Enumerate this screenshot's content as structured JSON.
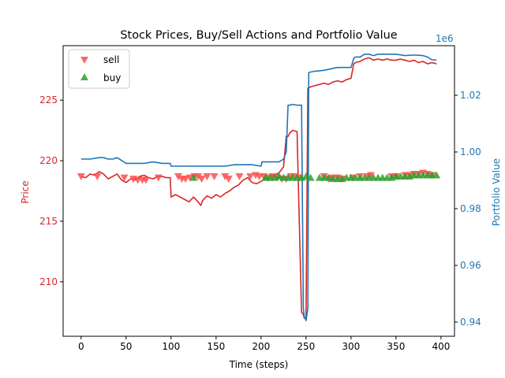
{
  "chart_data": {
    "type": "line",
    "title": "Stock Prices, Buy/Sell Actions and Portfolio Value",
    "xlabel": "Time (steps)",
    "ylabel": "Price",
    "y2label": "Portfolio Value",
    "y2_offset_text": "1e6",
    "xlim": [
      -20,
      415
    ],
    "ylim": [
      205.5,
      229.5
    ],
    "y2lim": [
      0.935,
      1.0375
    ],
    "x_ticks": [
      0,
      50,
      100,
      150,
      200,
      250,
      300,
      350,
      400
    ],
    "y_ticks": [
      210,
      215,
      220,
      225
    ],
    "y2_ticks": [
      0.94,
      0.96,
      0.98,
      1.0,
      1.02
    ],
    "y2_tick_labels": [
      "0.94",
      "0.96",
      "0.98",
      "1.00",
      "1.02"
    ],
    "legend_position": "top-left",
    "colors": {
      "price": "#d62728",
      "portfolio": "#1f77b4",
      "sell": "#ff4d4d",
      "buy": "#2ca02c"
    },
    "series": [
      {
        "name": "Price",
        "axis": "left",
        "x": [
          0,
          5,
          10,
          15,
          20,
          25,
          30,
          35,
          40,
          45,
          50,
          55,
          60,
          65,
          70,
          75,
          80,
          85,
          90,
          95,
          99,
          100,
          105,
          110,
          115,
          120,
          125,
          130,
          133,
          135,
          140,
          145,
          150,
          155,
          160,
          165,
          170,
          175,
          180,
          185,
          190,
          195,
          200,
          205,
          210,
          215,
          220,
          225,
          228,
          230,
          232,
          235,
          240,
          245,
          247,
          248,
          250,
          252,
          253,
          255,
          260,
          265,
          270,
          275,
          280,
          285,
          290,
          295,
          300,
          303,
          305,
          310,
          315,
          320,
          325,
          330,
          335,
          340,
          345,
          350,
          355,
          360,
          365,
          370,
          375,
          380,
          385,
          390,
          395
        ],
        "values": [
          218.7,
          218.6,
          218.9,
          218.8,
          219.1,
          218.9,
          218.5,
          218.7,
          218.9,
          218.4,
          218.2,
          218.5,
          218.4,
          218.7,
          218.8,
          218.6,
          218.5,
          218.7,
          218.7,
          218.6,
          218.6,
          217.0,
          217.2,
          217.0,
          216.8,
          216.6,
          217.0,
          216.6,
          216.3,
          216.7,
          217.1,
          216.9,
          217.2,
          217.0,
          217.3,
          217.5,
          217.8,
          218.0,
          218.4,
          218.6,
          218.2,
          218.1,
          218.3,
          218.5,
          218.7,
          218.8,
          219.0,
          219.5,
          222.0,
          222.0,
          222.3,
          222.5,
          222.4,
          207.5,
          207.3,
          207.0,
          207.0,
          226.0,
          226.0,
          226.1,
          226.2,
          226.3,
          226.4,
          226.3,
          226.5,
          226.6,
          226.5,
          226.7,
          226.8,
          228.0,
          228.1,
          228.2,
          228.4,
          228.5,
          228.3,
          228.4,
          228.3,
          228.4,
          228.3,
          228.3,
          228.4,
          228.3,
          228.2,
          228.3,
          228.1,
          228.2,
          228.0,
          228.1,
          228.0
        ]
      },
      {
        "name": "Portfolio Value",
        "axis": "right",
        "x": [
          0,
          10,
          20,
          25,
          30,
          35,
          40,
          45,
          50,
          60,
          70,
          80,
          90,
          99,
          100,
          110,
          120,
          130,
          140,
          150,
          160,
          170,
          180,
          190,
          200,
          201,
          210,
          220,
          225,
          228,
          230,
          232,
          235,
          240,
          245,
          247,
          248,
          250,
          252,
          253,
          255,
          260,
          270,
          280,
          285,
          290,
          300,
          303,
          305,
          310,
          315,
          320,
          325,
          330,
          340,
          350,
          360,
          370,
          380,
          385,
          390,
          395
        ],
        "values": [
          0.9975,
          0.9975,
          0.998,
          0.998,
          0.9975,
          0.9975,
          0.998,
          0.997,
          0.996,
          0.996,
          0.996,
          0.9965,
          0.996,
          0.996,
          0.995,
          0.995,
          0.995,
          0.995,
          0.995,
          0.995,
          0.995,
          0.9955,
          0.9955,
          0.9955,
          0.995,
          0.9965,
          0.9965,
          0.9965,
          0.9975,
          1.0,
          1.0165,
          1.0165,
          1.0168,
          1.0165,
          1.0165,
          0.945,
          0.942,
          0.9405,
          0.945,
          1.028,
          1.0282,
          1.0285,
          1.0288,
          1.0295,
          1.0298,
          1.0298,
          1.0298,
          1.033,
          1.0335,
          1.0335,
          1.0345,
          1.0345,
          1.034,
          1.0345,
          1.0345,
          1.0345,
          1.034,
          1.0342,
          1.034,
          1.0335,
          1.0325,
          1.0325
        ]
      }
    ],
    "markers": [
      {
        "name": "sell",
        "shape": "triangle-down",
        "x": [
          0,
          18,
          48,
          58,
          63,
          68,
          72,
          86,
          108,
          112,
          116,
          121,
          126,
          130,
          134,
          140,
          148,
          160,
          164,
          176,
          188,
          194,
          198,
          203,
          208,
          213,
          218,
          223,
          228,
          233,
          238,
          243,
          270,
          275,
          280,
          285,
          290,
          302,
          310,
          318,
          322,
          345,
          350,
          360,
          365,
          370,
          375,
          380,
          385,
          390
        ],
        "values": [
          218.7,
          218.7,
          218.6,
          218.5,
          218.4,
          218.4,
          218.4,
          218.6,
          218.7,
          218.5,
          218.5,
          218.6,
          218.7,
          218.7,
          218.5,
          218.7,
          218.7,
          218.7,
          218.5,
          218.7,
          218.7,
          218.8,
          218.7,
          218.7,
          218.6,
          218.7,
          218.6,
          218.5,
          218.5,
          218.7,
          218.7,
          218.6,
          218.7,
          218.5,
          218.6,
          218.6,
          218.5,
          218.6,
          218.7,
          218.7,
          218.8,
          218.7,
          218.7,
          218.8,
          218.8,
          218.9,
          218.9,
          219.0,
          218.9,
          218.8
        ]
      },
      {
        "name": "buy",
        "shape": "triangle-up",
        "x": [
          125,
          205,
          210,
          215,
          220,
          225,
          230,
          235,
          240,
          245,
          250,
          255,
          265,
          270,
          275,
          280,
          285,
          290,
          295,
          300,
          305,
          310,
          315,
          320,
          325,
          330,
          335,
          340,
          345,
          350,
          355,
          360,
          365,
          370,
          375,
          380,
          385,
          390,
          395
        ],
        "values": [
          218.6,
          218.6,
          218.6,
          218.6,
          218.7,
          218.6,
          218.6,
          218.6,
          218.6,
          218.6,
          218.7,
          218.6,
          218.6,
          218.6,
          218.6,
          218.5,
          218.5,
          218.5,
          218.6,
          218.6,
          218.6,
          218.6,
          218.6,
          218.6,
          218.6,
          218.6,
          218.6,
          218.6,
          218.6,
          218.7,
          218.7,
          218.7,
          218.7,
          218.8,
          218.8,
          218.8,
          218.8,
          218.8,
          218.8
        ]
      }
    ]
  }
}
